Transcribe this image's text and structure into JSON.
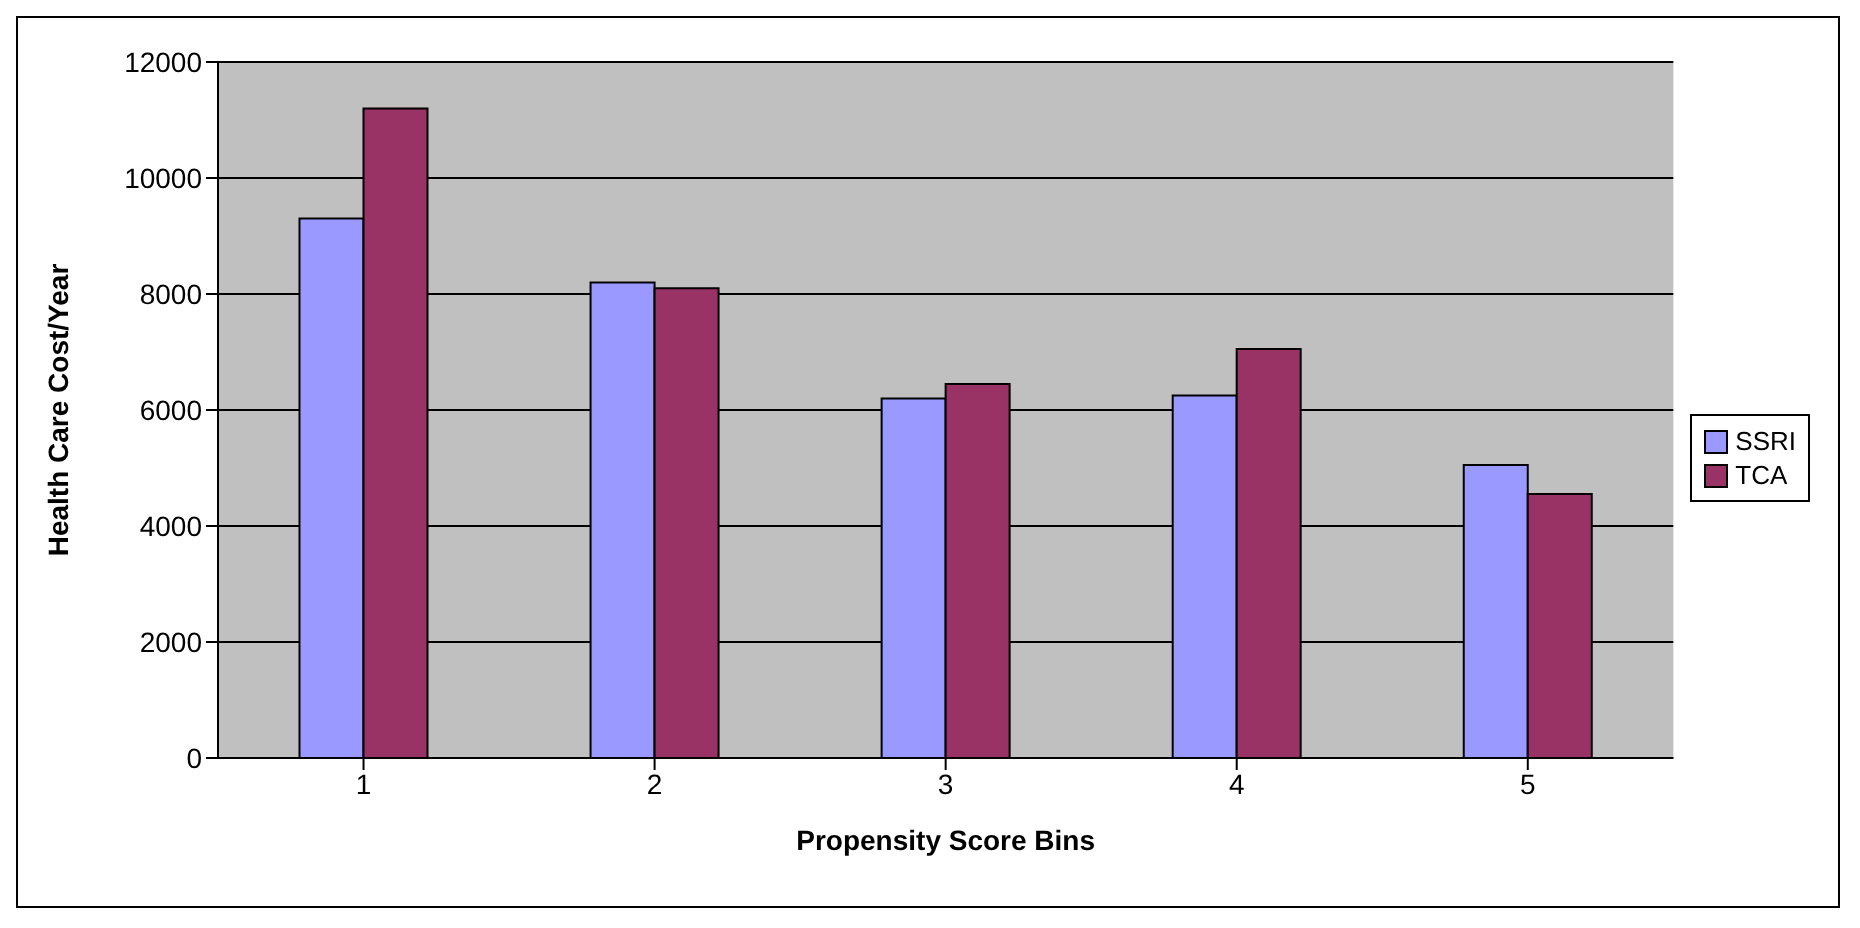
{
  "chart_data": {
    "type": "bar",
    "xlabel": "Propensity Score Bins",
    "ylabel": "Health Care Cost/Year",
    "categories": [
      "1",
      "2",
      "3",
      "4",
      "5"
    ],
    "series": [
      {
        "name": "SSRI",
        "color": "#9999ff",
        "values": [
          9300,
          8200,
          6200,
          6250,
          5050
        ]
      },
      {
        "name": "TCA",
        "color": "#993366",
        "values": [
          11200,
          8100,
          6450,
          7050,
          4550
        ]
      }
    ],
    "ylim": [
      0,
      12000
    ],
    "yticks": [
      0,
      2000,
      4000,
      6000,
      8000,
      10000,
      12000
    ],
    "grid": "y",
    "legend": "right"
  }
}
